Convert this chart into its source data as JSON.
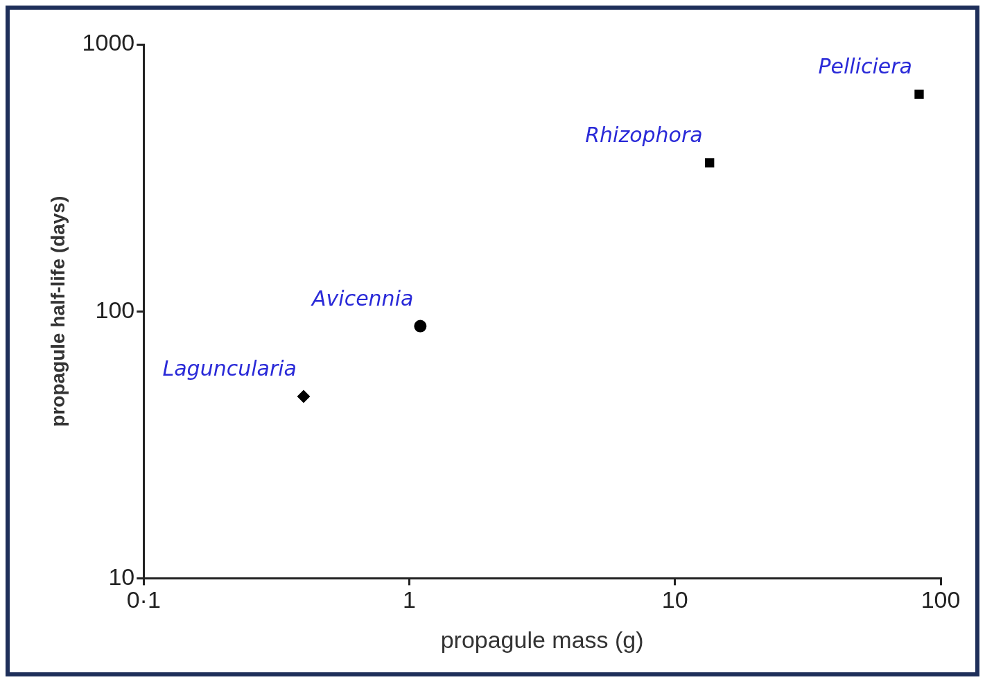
{
  "chart_data": {
    "type": "scatter",
    "xlabel": "propagule mass (g)",
    "ylabel": "propagule half-life (days)",
    "log": "xy",
    "grid": false,
    "legend": false,
    "xlim": [
      0.1,
      100
    ],
    "xticks": [
      {
        "value": 0.1,
        "label": "0·1"
      },
      1,
      10,
      100
    ],
    "ylim": [
      10,
      1000
    ],
    "yticks": [
      10,
      100,
      1000
    ],
    "series": [
      {
        "name": "Laguncularia",
        "color": "#000000",
        "marker": "diamond",
        "x": [
          0.4
        ],
        "values": [
          48
        ]
      },
      {
        "name": "Avicennia",
        "color": "#000000",
        "marker": "circle",
        "x": [
          1.1
        ],
        "values": [
          88
        ]
      },
      {
        "name": "Rhizophora",
        "color": "#000000",
        "marker": "square",
        "x": [
          13.5
        ],
        "values": [
          360
        ]
      },
      {
        "name": "Pelliciera",
        "color": "#000000",
        "marker": "square",
        "x": [
          83
        ],
        "values": [
          650
        ]
      }
    ]
  }
}
